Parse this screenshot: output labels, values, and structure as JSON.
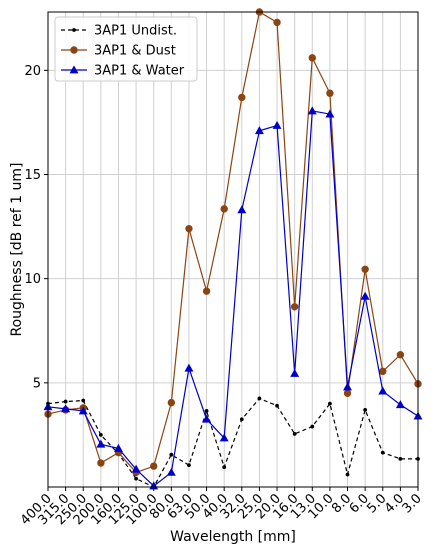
{
  "chart_data": {
    "type": "line",
    "title": "",
    "xlabel": "Wavelength [mm]",
    "ylabel": "Roughness [dB ref 1 um]",
    "x": [
      "400.0",
      "315.0",
      "250.0",
      "200.0",
      "160.0",
      "125.0",
      "100.0",
      "80.0",
      "63.0",
      "50.0",
      "40.0",
      "32.0",
      "25.0",
      "20.0",
      "16.0",
      "13.0",
      "10.0",
      "8.0",
      "6.0",
      "5.0",
      "4.0",
      "3.0"
    ],
    "y_ticks": [
      5,
      10,
      15,
      20
    ],
    "ylim": [
      0,
      22.8
    ],
    "grid": true,
    "legend_position": "top-left",
    "series": [
      {
        "name": "3AP1 Undist.",
        "color": "#000000",
        "style": "dashed",
        "marker": "dot",
        "values": [
          4.0,
          4.1,
          4.15,
          2.5,
          1.6,
          0.4,
          0.0,
          1.55,
          1.05,
          3.65,
          0.95,
          3.25,
          4.25,
          3.9,
          2.55,
          2.9,
          4.0,
          0.6,
          3.7,
          1.65,
          1.35,
          1.35
        ]
      },
      {
        "name": "3AP1 & Dust",
        "color": "#8B4513",
        "style": "solid",
        "marker": "circle",
        "values": [
          3.5,
          3.7,
          3.8,
          1.15,
          1.65,
          0.7,
          1.0,
          4.05,
          12.4,
          9.4,
          13.35,
          18.7,
          22.8,
          22.3,
          8.65,
          20.6,
          18.9,
          4.5,
          10.45,
          5.55,
          6.35,
          4.95
        ]
      },
      {
        "name": "3AP1 & Water",
        "color": "#0000CC",
        "style": "solid",
        "marker": "triangle",
        "values": [
          3.85,
          3.75,
          3.65,
          2.05,
          1.85,
          0.85,
          0.05,
          0.7,
          5.7,
          3.25,
          2.35,
          13.3,
          17.1,
          17.35,
          5.45,
          18.05,
          17.9,
          4.8,
          9.15,
          4.6,
          3.95,
          3.4
        ]
      }
    ]
  }
}
